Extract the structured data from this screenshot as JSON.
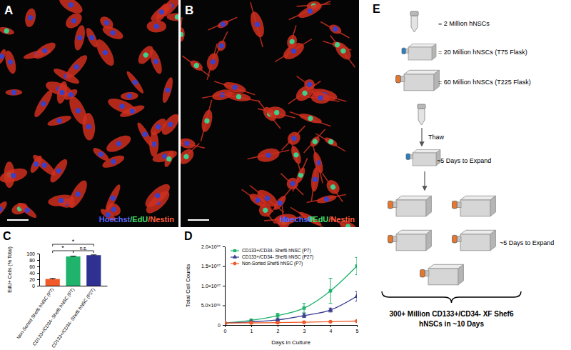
{
  "chart_data": [
    {
      "type": "bar",
      "panel": "C",
      "categories": [
        "Non-Sorted Shef6 hNSC (P7)",
        "CD133+/CD34- Shef6 hNSC (P7)",
        "CD133+/CD34- Shef6 hNSC (P27)"
      ],
      "values": [
        21,
        91,
        95
      ],
      "errors": [
        1.5,
        1,
        0.8
      ],
      "colors": [
        "#f15a29",
        "#1fb36b",
        "#2e3192"
      ],
      "ylabel": "EdU+ Cells (% Total)",
      "ylim": [
        0,
        100
      ],
      "yticks": [
        0,
        20,
        40,
        60,
        80,
        100
      ],
      "annotations": [
        {
          "text": "*",
          "from": 0,
          "to": 1
        },
        {
          "text": "n.s.",
          "from": 1,
          "to": 2
        },
        {
          "text": "*",
          "from": 0,
          "to": 2
        }
      ]
    },
    {
      "type": "line",
      "panel": "D",
      "x": [
        0,
        1,
        2,
        3,
        4,
        5
      ],
      "series": [
        {
          "name": "CD133+/CD34- Shef6 hNSC (P7)",
          "color": "#1fb36b",
          "marker": "square",
          "values": [
            500000,
            1200000,
            2400000,
            4300000,
            8700000,
            15000000
          ],
          "errors": [
            200000,
            300000,
            600000,
            1200000,
            3200000,
            2200000
          ]
        },
        {
          "name": "CD133+/CD34- Shef6 hNSC (P27)",
          "color": "#3a3d8f",
          "marker": "triangle",
          "values": [
            500000,
            800000,
            1300000,
            2400000,
            3800000,
            7300000
          ],
          "errors": [
            100000,
            200000,
            300000,
            500000,
            500000,
            1200000
          ]
        },
        {
          "name": "Non-Sorted Shef6 hNSC (P7)",
          "color": "#f05a28",
          "marker": "circle",
          "values": [
            500000,
            550000,
            600000,
            700000,
            850000,
            1000000
          ],
          "errors": [
            50000,
            50000,
            50000,
            50000,
            50000,
            50000
          ]
        }
      ],
      "xlabel": "Days in Culture",
      "ylabel": "Total Cell Counts",
      "xlim": [
        0,
        5
      ],
      "ylim": [
        0,
        20000000
      ],
      "xticks": [
        0,
        1,
        2,
        3,
        4,
        5
      ],
      "yticks": [
        0,
        {
          "value": 5000000,
          "label": "5.0×10⁰⁶"
        },
        {
          "value": 10000000,
          "label": "1.0×10⁰⁷"
        },
        {
          "value": 15000000,
          "label": "1.5×10⁰⁷"
        },
        {
          "value": 20000000,
          "label": "2.0×10⁰⁷"
        }
      ],
      "legend": "upper left"
    }
  ],
  "images": [
    {
      "panel": "A",
      "caption": [
        "Hoechst",
        "/EdU",
        "/Nestin"
      ]
    },
    {
      "panel": "B",
      "caption": [
        "Hoechst",
        "/EdU",
        "/Nestin"
      ]
    }
  ],
  "diagram": {
    "panel": "E",
    "key": [
      "= 2 Million hNSCs",
      "= 20 Million hNSCs (T75 Flask)",
      "= 60 Million hNSCs (T225 Flask)"
    ],
    "steps": [
      "Thaw",
      "~5 Days to Expand",
      "~5 Days to Expand"
    ],
    "result": [
      "300+ Million CD133+/CD34- XF Shef6",
      "hNSCs in ~10 Days"
    ]
  }
}
